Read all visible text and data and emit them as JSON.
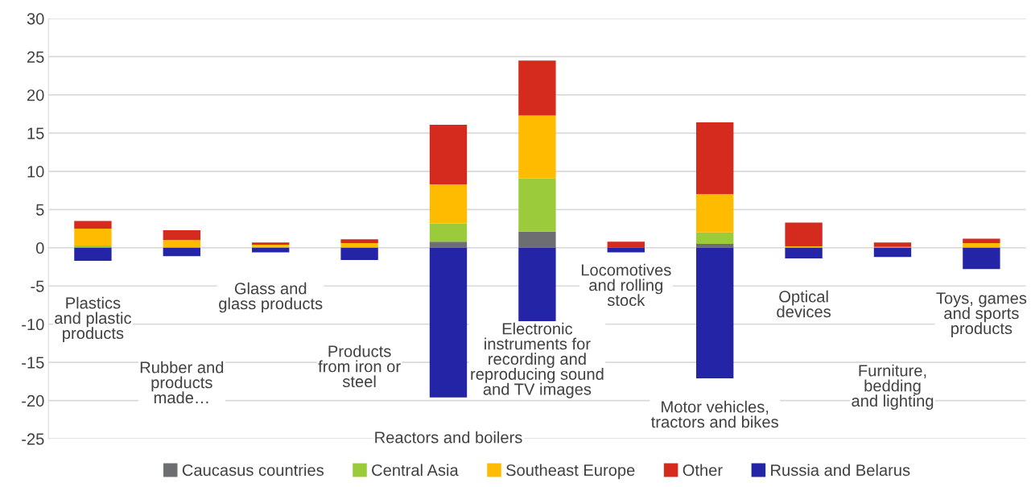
{
  "chart_data": {
    "type": "bar",
    "stacked": true,
    "categories": [
      "Plastics\nand plastic\nproducts",
      "Rubber and\nproducts\nmade…",
      "Glass and\nglass products",
      "Products\nfrom iron or\nsteel",
      "Reactors and boilers",
      "Electronic\ninstruments for\nrecording and\nreproducing sound\nand TV images",
      "Locomotives\nand rolling\nstock",
      "Motor vehicles,\ntractors and bikes",
      "Optical\ndevices",
      "Furniture,\nbedding\nand lighting",
      "Toys, games\nand sports\nproducts"
    ],
    "series": [
      {
        "name": "Caucasus countries",
        "color": "#6d6e71",
        "values": [
          0,
          0,
          0,
          0,
          0.8,
          2.1,
          0,
          0.5,
          0,
          0,
          0
        ]
      },
      {
        "name": "Central Asia",
        "color": "#9bcb3b",
        "values": [
          0.3,
          0,
          0.1,
          0,
          2.4,
          7.0,
          0,
          1.5,
          0,
          0,
          0
        ]
      },
      {
        "name": "Southeast Europe",
        "color": "#ffbb00",
        "values": [
          2.2,
          1.0,
          0.3,
          0.6,
          5.1,
          8.2,
          0,
          5.0,
          0.2,
          0.1,
          0.6
        ]
      },
      {
        "name": "Other",
        "color": "#d52b1e",
        "values": [
          1.0,
          1.3,
          0.3,
          0.5,
          7.8,
          7.2,
          0.8,
          9.4,
          3.1,
          0.6,
          0.6
        ]
      },
      {
        "name": "Russia and Belarus",
        "color": "#2424a6",
        "values": [
          -1.7,
          -1.1,
          -0.6,
          -1.6,
          -19.6,
          -9.6,
          -0.6,
          -17.1,
          -1.4,
          -1.2,
          -2.8
        ]
      }
    ],
    "ylim": [
      -25,
      30
    ],
    "yticks": [
      -25,
      -20,
      -15,
      -10,
      -5,
      0,
      5,
      10,
      15,
      20,
      25,
      30
    ],
    "grid": "y",
    "legend": "bottom"
  }
}
